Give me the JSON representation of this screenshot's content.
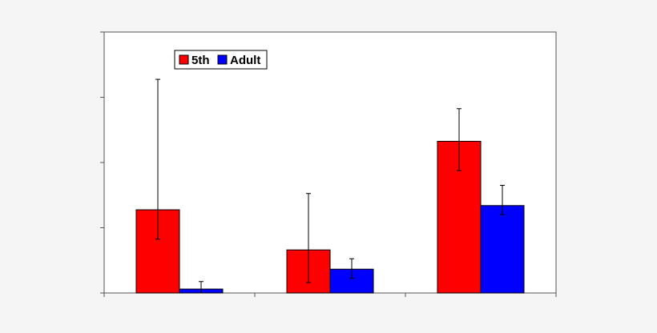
{
  "chart_data": {
    "type": "bar",
    "categories": [
      "",
      "",
      ""
    ],
    "series": [
      {
        "name": "5th",
        "color": "#ff0000",
        "values": [
          2.55,
          1.32,
          4.65
        ],
        "error": [
          [
            1.65,
            6.55
          ],
          [
            0.32,
            3.05
          ],
          [
            3.75,
            5.65
          ]
        ]
      },
      {
        "name": "Adult",
        "color": "#0000ff",
        "values": [
          0.12,
          0.73,
          2.68
        ],
        "error": [
          [
            0.0,
            0.35
          ],
          [
            0.45,
            1.05
          ],
          [
            2.4,
            3.3
          ]
        ]
      }
    ],
    "title": "",
    "xlabel": "",
    "ylabel": "",
    "ylim": [
      0,
      8
    ],
    "y_ticks": [
      0,
      2,
      4,
      6,
      8
    ],
    "tick_labels_visible": false,
    "grid": false,
    "legend_position": "top-left",
    "legend_orientation": "horizontal",
    "plot_background": "#ffffff",
    "page_background": "#f5f5f5",
    "bar_edge_color": "#000000"
  }
}
